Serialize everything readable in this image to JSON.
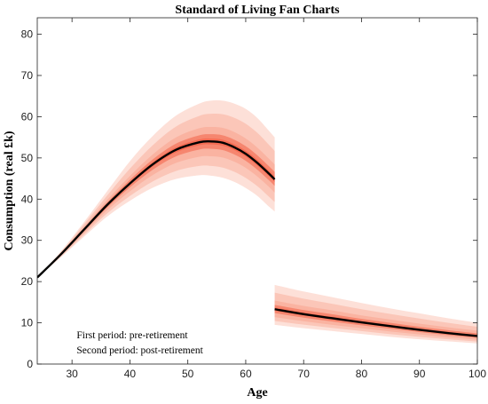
{
  "chart_data": {
    "type": "area",
    "title": "Standard of Living Fan Charts",
    "xlabel": "Age",
    "ylabel": "Consumption (real £k)",
    "xlim": [
      24,
      100
    ],
    "ylim": [
      0,
      84
    ],
    "x_ticks": [
      30,
      40,
      50,
      60,
      70,
      80,
      90,
      100
    ],
    "y_ticks": [
      0,
      10,
      20,
      30,
      40,
      50,
      60,
      70,
      80
    ],
    "grid": false,
    "legend": "none",
    "colors": {
      "median": "#000000",
      "band_outer": "#fde0d8",
      "band_mid": "#fab09f",
      "band_inner": "#f4674f"
    },
    "annotations": [
      "First period: pre-retirement",
      "Second period: post-retirement"
    ],
    "series": [
      {
        "name": "First period: pre-retirement",
        "x": [
          24,
          28,
          32,
          36,
          40,
          44,
          48,
          52,
          54,
          56,
          58,
          60,
          62,
          64,
          65
        ],
        "median": [
          21,
          26.5,
          32.5,
          38.5,
          43.8,
          48.5,
          52,
          53.8,
          54,
          53.7,
          52.6,
          51,
          48.8,
          46.2,
          44.8
        ],
        "p05": [
          21,
          25.8,
          30.8,
          35.7,
          39.6,
          42.8,
          44.9,
          45.8,
          45.7,
          45.2,
          44.2,
          42.7,
          40.8,
          38.2,
          37
        ],
        "p25": [
          21,
          26.2,
          31.7,
          37.2,
          41.9,
          45.9,
          48.8,
          50.3,
          50.4,
          50.1,
          49.1,
          47.6,
          45.5,
          43,
          41.6
        ],
        "p75": [
          21,
          26.8,
          33.2,
          39.7,
          45.6,
          50.9,
          55,
          57.2,
          57.5,
          57.3,
          56.3,
          54.7,
          52.5,
          49.8,
          48.4
        ],
        "p95": [
          21,
          27.2,
          34.3,
          41.8,
          49.2,
          55.4,
          60.3,
          63.2,
          63.9,
          63.9,
          63.2,
          61.9,
          59.7,
          56.6,
          55
        ]
      },
      {
        "name": "Second period: post-retirement",
        "x": [
          65,
          70,
          75,
          80,
          85,
          90,
          95,
          100
        ],
        "median": [
          13.3,
          12.1,
          11.1,
          10.1,
          9.2,
          8.3,
          7.5,
          6.8
        ],
        "p05": [
          9.5,
          8.7,
          8,
          7.3,
          6.6,
          6,
          5.5,
          5
        ],
        "p25": [
          11.4,
          10.4,
          9.5,
          8.7,
          7.9,
          7.2,
          6.5,
          5.9
        ],
        "p75": [
          15.4,
          14.1,
          13,
          11.8,
          10.8,
          9.8,
          8.9,
          8.1
        ],
        "p95": [
          19.2,
          17.6,
          16.2,
          14.8,
          13.5,
          12.3,
          11.1,
          10
        ]
      }
    ]
  }
}
